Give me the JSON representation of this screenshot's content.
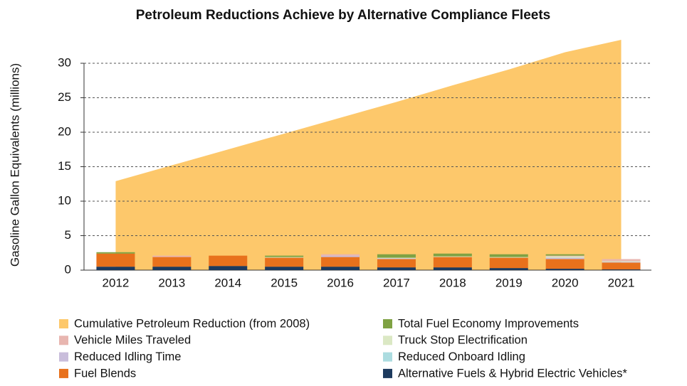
{
  "chart_data": {
    "type": "stacked_bar_area",
    "title": "Petroleum Reductions Achieve by Alternative Compliance Fleets",
    "y_label": "Gasoline Gallon Equivalents (millions)",
    "categories": [
      "2012",
      "2013",
      "2014",
      "2015",
      "2016",
      "2017",
      "2018",
      "2019",
      "2020",
      "2021"
    ],
    "ylim": [
      0,
      34
    ],
    "yticks": [
      0,
      5,
      10,
      15,
      20,
      25,
      30
    ],
    "grid": true,
    "series": [
      {
        "name": "Cumulative Petroleum Reduction (from 2008)",
        "kind": "area",
        "color": "#fdc86b",
        "values": [
          12.9,
          15.2,
          17.5,
          19.8,
          22.1,
          24.4,
          26.8,
          29.1,
          31.6,
          33.4
        ]
      },
      {
        "name": "Alternative Fuels & Hybrid Electric Vehicles*",
        "kind": "bar",
        "color": "#1d3a5e",
        "values": [
          0.5,
          0.5,
          0.6,
          0.5,
          0.5,
          0.4,
          0.4,
          0.3,
          0.2,
          0.1
        ]
      },
      {
        "name": "Fuel Blends",
        "kind": "bar",
        "color": "#e8711c",
        "values": [
          1.9,
          1.4,
          1.5,
          1.3,
          1.4,
          1.2,
          1.5,
          1.5,
          1.4,
          1.0
        ]
      },
      {
        "name": "Reduced Onboard Idling",
        "kind": "bar",
        "color": "#acdce0",
        "values": [
          0,
          0,
          0,
          0,
          0,
          0,
          0,
          0,
          0,
          0
        ]
      },
      {
        "name": "Reduced Idling Time",
        "kind": "bar",
        "color": "#c9bddb",
        "values": [
          0,
          0,
          0,
          0,
          0.2,
          0.1,
          0,
          0,
          0.2,
          0.1
        ]
      },
      {
        "name": "Truck Stop Electrification",
        "kind": "bar",
        "color": "#dbe8c4",
        "values": [
          0,
          0,
          0,
          0.1,
          0,
          0.1,
          0.1,
          0.1,
          0.2,
          0.1
        ]
      },
      {
        "name": "Vehicle Miles Traveled",
        "kind": "bar",
        "color": "#e8b6b0",
        "values": [
          0,
          0.2,
          0,
          0,
          0.2,
          0,
          0,
          0,
          0.1,
          0.3
        ]
      },
      {
        "name": "Total Fuel Economy Improvements",
        "kind": "bar",
        "color": "#7fa243",
        "values": [
          0.2,
          0,
          0,
          0.2,
          0,
          0.5,
          0.4,
          0.4,
          0.2,
          0
        ]
      }
    ]
  }
}
